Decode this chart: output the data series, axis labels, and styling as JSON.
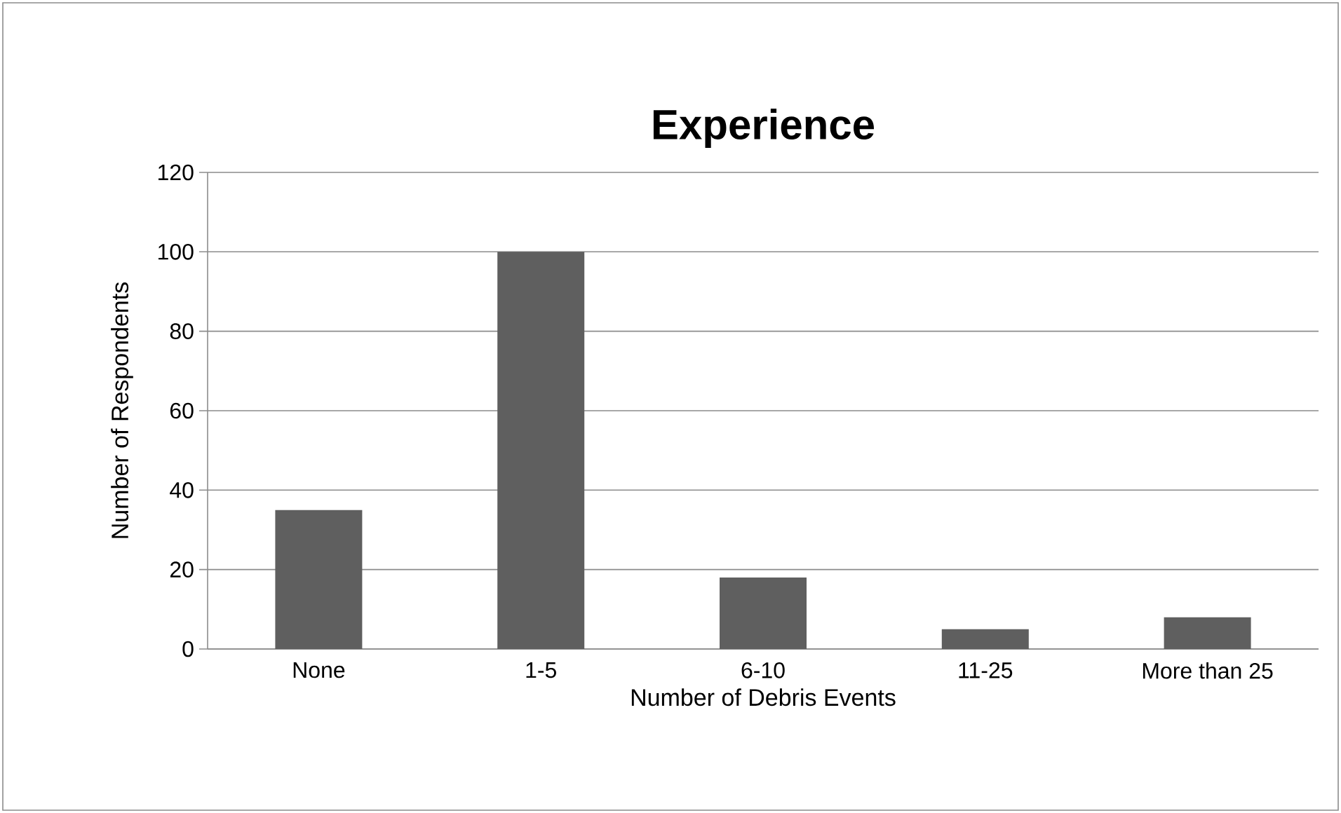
{
  "chart_data": {
    "type": "bar",
    "title": "Experience",
    "xlabel": "Number of Debris Events",
    "ylabel": "Number of Respondents",
    "categories": [
      "None",
      "1-5",
      "6-10",
      "11-25",
      "More than 25"
    ],
    "values": [
      35,
      100,
      18,
      5,
      8
    ],
    "color": "#5f5f5f",
    "ylim": [
      0,
      120
    ],
    "yticks": [
      0,
      20,
      40,
      60,
      80,
      100,
      120
    ],
    "grid": "y"
  }
}
